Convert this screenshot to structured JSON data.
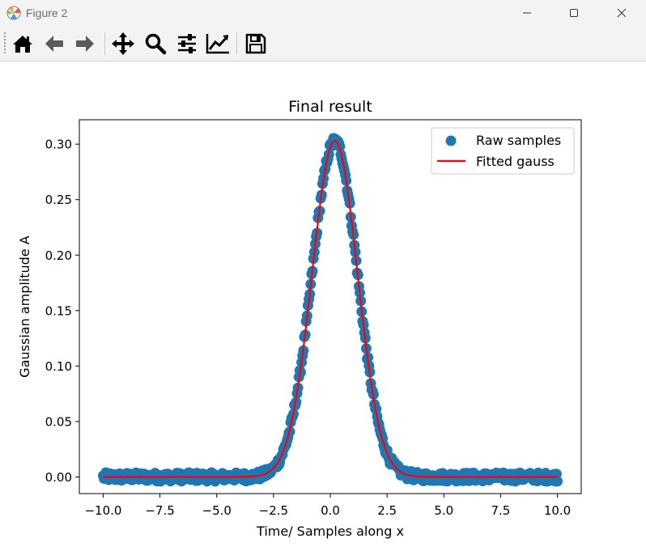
{
  "window": {
    "title": "Figure 2",
    "controls": [
      "minimize-icon",
      "maximize-icon",
      "close-icon"
    ]
  },
  "toolbar": {
    "buttons": [
      {
        "name": "home",
        "icon": "home-icon"
      },
      {
        "name": "back",
        "icon": "arrow-left-icon"
      },
      {
        "name": "forward",
        "icon": "arrow-right-icon"
      },
      {
        "name": "pan",
        "icon": "move-icon"
      },
      {
        "name": "zoom",
        "icon": "magnifier-icon"
      },
      {
        "name": "subplots",
        "icon": "sliders-icon"
      },
      {
        "name": "edit-axes",
        "icon": "line-chart-icon"
      },
      {
        "name": "save",
        "icon": "floppy-disk-icon"
      }
    ]
  },
  "chart_data": {
    "type": "scatter",
    "title": "Final result",
    "xlabel": "Time/ Samples along x",
    "ylabel": "Gaussian amplitude A",
    "xlim": [
      -11.05,
      11.05
    ],
    "ylim": [
      -0.015,
      0.322
    ],
    "xticks": [
      -10.0,
      -7.5,
      -5.0,
      -2.5,
      0.0,
      2.5,
      5.0,
      7.5,
      10.0
    ],
    "xtick_labels": [
      "−10.0",
      "−7.5",
      "−5.0",
      "−2.5",
      "0.0",
      "2.5",
      "5.0",
      "7.5",
      "10.0"
    ],
    "yticks": [
      0.0,
      0.05,
      0.1,
      0.15,
      0.2,
      0.25,
      0.3
    ],
    "ytick_labels": [
      "0.00",
      "0.05",
      "0.10",
      "0.15",
      "0.20",
      "0.25",
      "0.30"
    ],
    "grid": false,
    "legend_position": "top-right",
    "series": [
      {
        "name": "Raw samples",
        "kind": "scatter",
        "color": "#1f77b4",
        "x_range": [
          -10.0,
          10.0
        ],
        "n_points": 500,
        "noise_amplitude": 0.004,
        "model": {
          "amplitude": 0.303,
          "center": 0.2,
          "sigma": 1.0
        }
      },
      {
        "name": "Fitted gauss",
        "kind": "line",
        "color": "#ff0000",
        "x_range": [
          -10.0,
          10.0
        ],
        "model": {
          "amplitude": 0.303,
          "center": 0.2,
          "sigma": 1.0
        }
      }
    ]
  }
}
